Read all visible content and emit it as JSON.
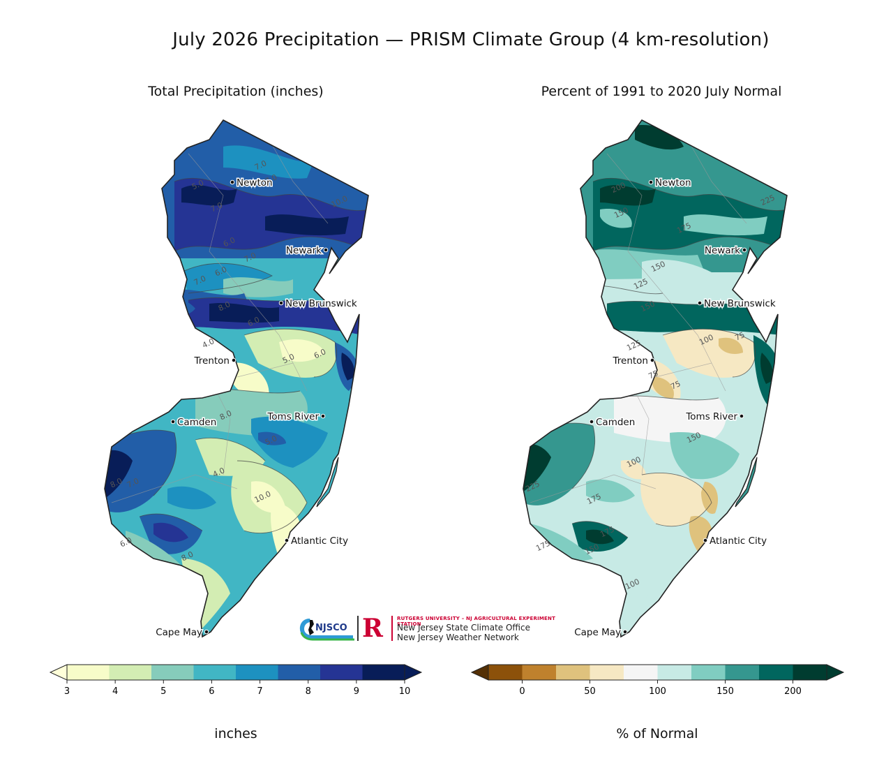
{
  "title": "July 2026 Precipitation — PRISM Climate Group (4 km-resolution)",
  "left_panel": {
    "title": "Total Precipitation (inches)",
    "legend": {
      "unit": "inches",
      "ticks": [
        "3",
        "4",
        "5",
        "6",
        "7",
        "8",
        "9",
        "10"
      ],
      "colors": [
        "#f7fcc9",
        "#d3edb3",
        "#86ccbb",
        "#41b6c4",
        "#1d91c0",
        "#225ea8",
        "#253494",
        "#081d58"
      ]
    },
    "contour_labels": [
      "5.0",
      "7.0",
      "7.0",
      "10.0",
      "7.0",
      "6.0",
      "7.0",
      "6.0",
      "7.0",
      "8.0",
      "6.0",
      "4.0",
      "5.0",
      "6.0",
      "8.0",
      "5.0",
      "4.0",
      "10.0",
      "8.0",
      "7.0",
      "8.0",
      "6.0"
    ]
  },
  "right_panel": {
    "title": "Percent of 1991 to 2020 July Normal",
    "legend": {
      "unit": "% of Normal",
      "ticks": [
        "0",
        "50",
        "100",
        "150",
        "200"
      ],
      "colors": [
        "#8c510a",
        "#bf812d",
        "#dfc27d",
        "#f6e8c3",
        "#f5f5f5",
        "#c7eae5",
        "#80cdc1",
        "#35978f",
        "#01665e",
        "#003c30"
      ]
    },
    "contour_labels": [
      "200",
      "150",
      "175",
      "225",
      "150",
      "125",
      "150",
      "100",
      "75",
      "125",
      "75",
      "75",
      "150",
      "100",
      "175",
      "175",
      "150",
      "100",
      "225",
      "175"
    ]
  },
  "cities": [
    "Newton",
    "Newark",
    "New Brunswick",
    "Trenton",
    "Toms River",
    "Camden",
    "Atlantic City",
    "Cape May"
  ],
  "logo": {
    "njsco": "NJSCO",
    "rutgers_mark": "R",
    "rutgers_line": "RUTGERS UNIVERSITY – NJ AGRICULTURAL EXPERIMENT STATION",
    "office": "New Jersey State Climate Office",
    "network": "New Jersey Weather Network"
  }
}
